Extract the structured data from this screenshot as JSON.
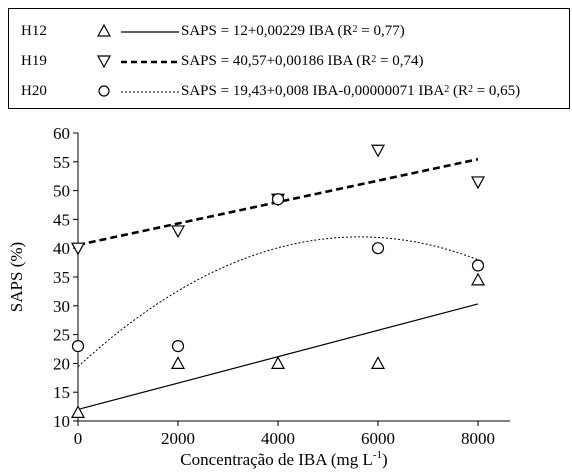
{
  "legend": [
    {
      "series": "H12",
      "marker": "triangle-up",
      "eq_a": "SAPS = 12+0,00229 IBA (R",
      "eq_sup1": "2",
      "eq_b": " = 0,77)",
      "eq_sup2": "",
      "eq_c": ""
    },
    {
      "series": "H19",
      "marker": "triangle-down",
      "eq_a": "SAPS = 40,57+0,00186 IBA (R",
      "eq_sup1": "2",
      "eq_b": " = 0,74)",
      "eq_sup2": "",
      "eq_c": ""
    },
    {
      "series": "H20",
      "marker": "circle",
      "eq_a": "SAPS = 19,43+0,008 IBA-0,00000071 IBA",
      "eq_sup1": "2",
      "eq_b": " (R",
      "eq_sup2": "2",
      "eq_c": " = 0,65)"
    }
  ],
  "chart_data": {
    "type": "scatter",
    "xlabel": "Concentração de IBA (mg L",
    "xlabel_sup": "-1",
    "xlabel_end": ")",
    "ylabel": "SAPS (%)",
    "xlim": [
      0,
      8000
    ],
    "ylim": [
      10,
      60
    ],
    "xticks": [
      0,
      2000,
      4000,
      6000,
      8000
    ],
    "yticks": [
      10,
      15,
      20,
      25,
      30,
      35,
      40,
      45,
      50,
      55,
      60
    ],
    "grid": false,
    "series": [
      {
        "name": "H12",
        "marker": "triangle-up",
        "x": [
          0,
          2000,
          4000,
          6000,
          8000
        ],
        "y": [
          11.5,
          20,
          20,
          20,
          34.5
        ],
        "fit": {
          "type": "linear",
          "coef": [
            12,
            0.00229
          ],
          "style": "solid"
        }
      },
      {
        "name": "H19",
        "marker": "triangle-down",
        "x": [
          0,
          2000,
          4000,
          6000,
          8000
        ],
        "y": [
          40,
          43,
          48.5,
          57,
          51.5
        ],
        "fit": {
          "type": "linear",
          "coef": [
            40.57,
            0.00186
          ],
          "style": "dashed"
        }
      },
      {
        "name": "H20",
        "marker": "circle",
        "x": [
          0,
          2000,
          4000,
          6000,
          8000
        ],
        "y": [
          23,
          23,
          48.5,
          40,
          37
        ],
        "fit": {
          "type": "quadratic",
          "coef": [
            19.43,
            0.008,
            -7.1e-07
          ],
          "style": "dotted"
        }
      }
    ]
  }
}
